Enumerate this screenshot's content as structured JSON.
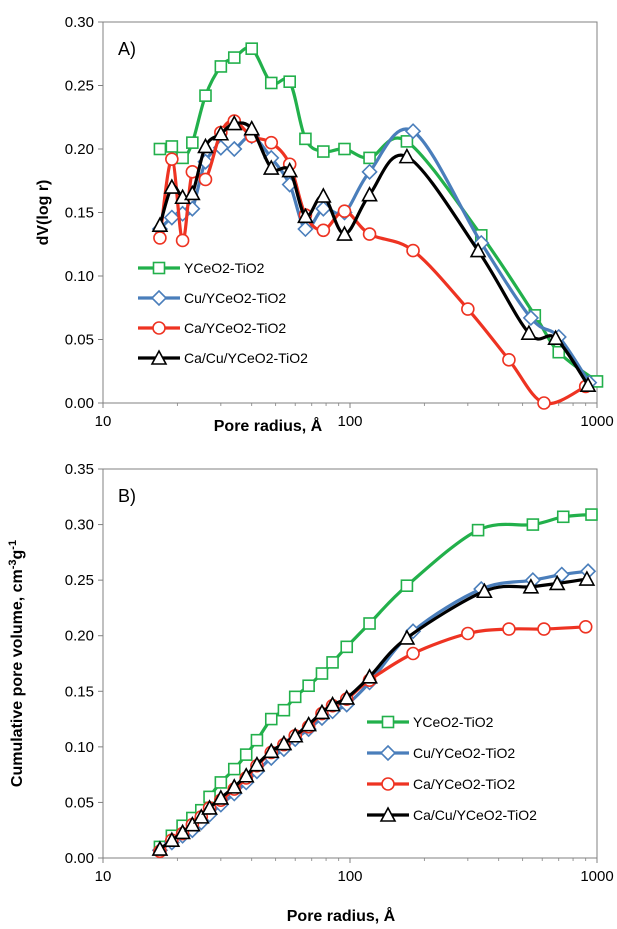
{
  "colors": {
    "YCeO2-TiO2": "#22b04b",
    "Cu/YCeO2-TiO2": "#4a7ebb",
    "Ca/YCeO2-TiO2": "#ee3322",
    "Ca/Cu/YCeO2-TiO2": "#000000"
  },
  "markers": {
    "YCeO2-TiO2": "square",
    "Cu/YCeO2-TiO2": "diamond",
    "Ca/YCeO2-TiO2": "circle",
    "Ca/Cu/YCeO2-TiO2": "triangle"
  },
  "chart_data": [
    {
      "type": "line",
      "panel_label": "A)",
      "xlabel": "Pore radius, Å",
      "ylabel": "dV(log r)",
      "xscale": "log",
      "xlim": [
        10,
        1000
      ],
      "ylim": [
        0,
        0.3
      ],
      "yticks": [
        "0.00",
        "0.05",
        "0.10",
        "0.15",
        "0.20",
        "0.25",
        "0.30"
      ],
      "xticks": [
        "10",
        "100",
        "1000"
      ],
      "legend_position": "bottom-left",
      "grid": false,
      "series": [
        {
          "name": "YCeO2-TiO2",
          "x": [
            17,
            19,
            21,
            23,
            26,
            30,
            34,
            40,
            48,
            57,
            66,
            78,
            95,
            120,
            170,
            340,
            560,
            700,
            1000
          ],
          "y": [
            0.2,
            0.202,
            0.193,
            0.205,
            0.242,
            0.265,
            0.272,
            0.279,
            0.252,
            0.253,
            0.208,
            0.198,
            0.2,
            0.193,
            0.206,
            0.132,
            0.069,
            0.04,
            0.017
          ]
        },
        {
          "name": "Cu/YCeO2-TiO2",
          "x": [
            17,
            19,
            21,
            23,
            26,
            30,
            34,
            40,
            48,
            57,
            66,
            78,
            95,
            120,
            180,
            340,
            540,
            700,
            930
          ],
          "y": [
            0.137,
            0.146,
            0.149,
            0.153,
            0.19,
            0.201,
            0.2,
            0.21,
            0.193,
            0.172,
            0.137,
            0.153,
            0.15,
            0.182,
            0.214,
            0.126,
            0.067,
            0.052,
            0.016
          ]
        },
        {
          "name": "Ca/YCeO2-TiO2",
          "x": [
            17,
            19,
            21,
            23,
            26,
            30,
            34,
            40,
            48,
            57,
            66,
            78,
            95,
            120,
            180,
            300,
            440,
            610,
            900
          ],
          "y": [
            0.13,
            0.192,
            0.128,
            0.182,
            0.176,
            0.213,
            0.222,
            0.21,
            0.205,
            0.188,
            0.148,
            0.136,
            0.151,
            0.133,
            0.12,
            0.074,
            0.034,
            0.0,
            0.013
          ]
        },
        {
          "name": "Ca/Cu/YCeO2-TiO2",
          "x": [
            17,
            19,
            21,
            23,
            26,
            30,
            34,
            40,
            48,
            57,
            66,
            78,
            95,
            120,
            170,
            330,
            530,
            680,
            920
          ],
          "y": [
            0.14,
            0.17,
            0.162,
            0.165,
            0.202,
            0.212,
            0.22,
            0.216,
            0.185,
            0.183,
            0.147,
            0.163,
            0.133,
            0.164,
            0.194,
            0.12,
            0.055,
            0.051,
            0.014
          ]
        }
      ]
    },
    {
      "type": "line",
      "panel_label": "B)",
      "xlabel": "Pore radius, Å",
      "ylabel": "Cumulative  pore volume, cm",
      "ylabel_sup1": "-3",
      "ylabel_mid": "g",
      "ylabel_sup2": "-1",
      "xscale": "log",
      "xlim": [
        10,
        1000
      ],
      "ylim": [
        0,
        0.35
      ],
      "yticks": [
        "0.00",
        "0.05",
        "0.10",
        "0.15",
        "0.20",
        "0.25",
        "0.30",
        "0.35"
      ],
      "xticks": [
        "10",
        "100",
        "1000"
      ],
      "legend_position": "bottom-right",
      "grid": false,
      "series": [
        {
          "name": "YCeO2-TiO2",
          "x": [
            17,
            19,
            21,
            23,
            25,
            27,
            30,
            34,
            38,
            42,
            48,
            54,
            60,
            68,
            77,
            85,
            97,
            120,
            170,
            330,
            550,
            730,
            950
          ],
          "y": [
            0.01,
            0.02,
            0.029,
            0.036,
            0.043,
            0.055,
            0.068,
            0.08,
            0.093,
            0.106,
            0.125,
            0.133,
            0.145,
            0.155,
            0.166,
            0.176,
            0.19,
            0.211,
            0.245,
            0.295,
            0.3,
            0.307,
            0.309
          ]
        },
        {
          "name": "Cu/YCeO2-TiO2",
          "x": [
            17,
            19,
            21,
            23,
            25,
            27,
            30,
            34,
            38,
            42,
            48,
            54,
            60,
            68,
            77,
            85,
            97,
            120,
            180,
            340,
            550,
            720,
            920
          ],
          "y": [
            0.007,
            0.014,
            0.02,
            0.025,
            0.032,
            0.039,
            0.048,
            0.058,
            0.068,
            0.078,
            0.09,
            0.098,
            0.107,
            0.116,
            0.126,
            0.132,
            0.138,
            0.158,
            0.204,
            0.242,
            0.25,
            0.255,
            0.258
          ]
        },
        {
          "name": "Ca/YCeO2-TiO2",
          "x": [
            17,
            19,
            21,
            23,
            25,
            27,
            30,
            34,
            38,
            42,
            48,
            54,
            60,
            68,
            77,
            85,
            97,
            120,
            180,
            300,
            440,
            610,
            900
          ],
          "y": [
            0.006,
            0.016,
            0.022,
            0.03,
            0.037,
            0.045,
            0.052,
            0.062,
            0.072,
            0.083,
            0.095,
            0.102,
            0.11,
            0.118,
            0.13,
            0.137,
            0.143,
            0.16,
            0.184,
            0.202,
            0.206,
            0.206,
            0.208
          ]
        },
        {
          "name": "Ca/Cu/YCeO2-TiO2",
          "x": [
            17,
            19,
            21,
            23,
            25,
            27,
            30,
            34,
            38,
            42,
            48,
            54,
            60,
            68,
            77,
            85,
            97,
            120,
            170,
            350,
            540,
            690,
            910
          ],
          "y": [
            0.008,
            0.016,
            0.023,
            0.03,
            0.037,
            0.045,
            0.054,
            0.064,
            0.074,
            0.084,
            0.096,
            0.103,
            0.11,
            0.12,
            0.131,
            0.138,
            0.144,
            0.163,
            0.198,
            0.24,
            0.244,
            0.247,
            0.251
          ]
        }
      ]
    }
  ]
}
